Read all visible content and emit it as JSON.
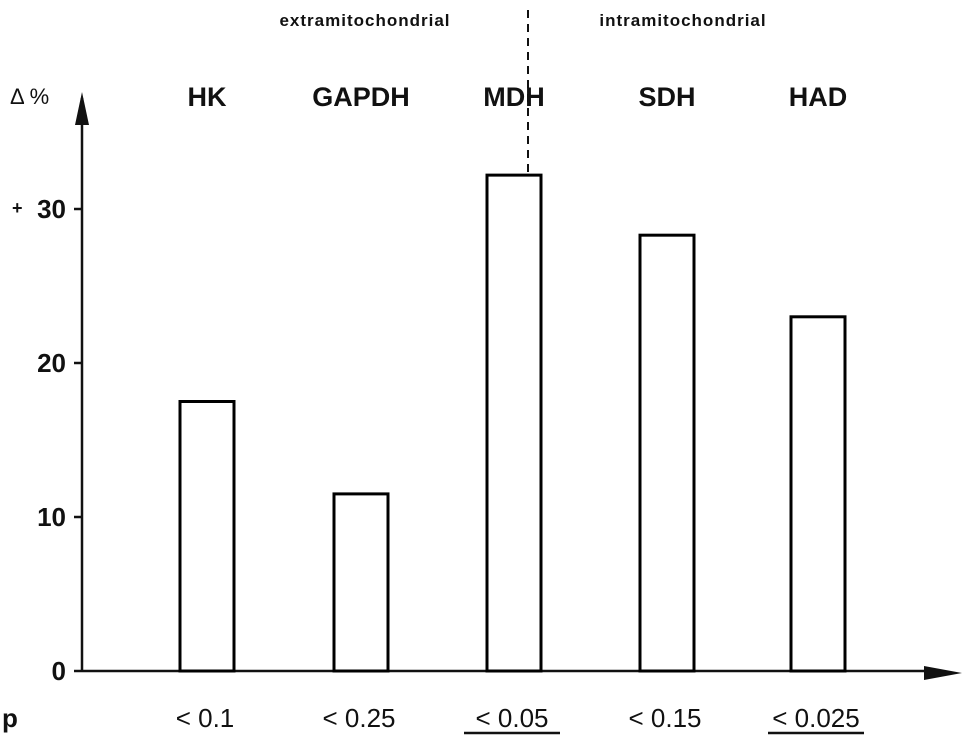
{
  "chart_data": {
    "type": "bar",
    "y_axis_label": "Δ %",
    "y_tick_prefix": "+",
    "region_labels": [
      "extramitochondrial",
      "intramitochondrial"
    ],
    "categories": [
      "HK",
      "GAPDH",
      "MDH",
      "SDH",
      "HAD"
    ],
    "values": [
      17.5,
      11.5,
      32.2,
      28.3,
      23.0
    ],
    "ylim": [
      0,
      35
    ],
    "yticks": [
      {
        "value": 0,
        "label": "0"
      },
      {
        "value": 10,
        "label": "10"
      },
      {
        "value": 20,
        "label": "20"
      },
      {
        "value": 30,
        "label": "30"
      }
    ],
    "p_row_label": "p",
    "p_values": [
      "< 0.1",
      "< 0.25",
      "< 0.05",
      "< 0.15",
      "< 0.025"
    ],
    "p_significant": [
      false,
      false,
      true,
      false,
      true
    ],
    "bar_fill": "#ffffff",
    "bar_stroke": "#000000",
    "grid": false,
    "legend": "none"
  }
}
